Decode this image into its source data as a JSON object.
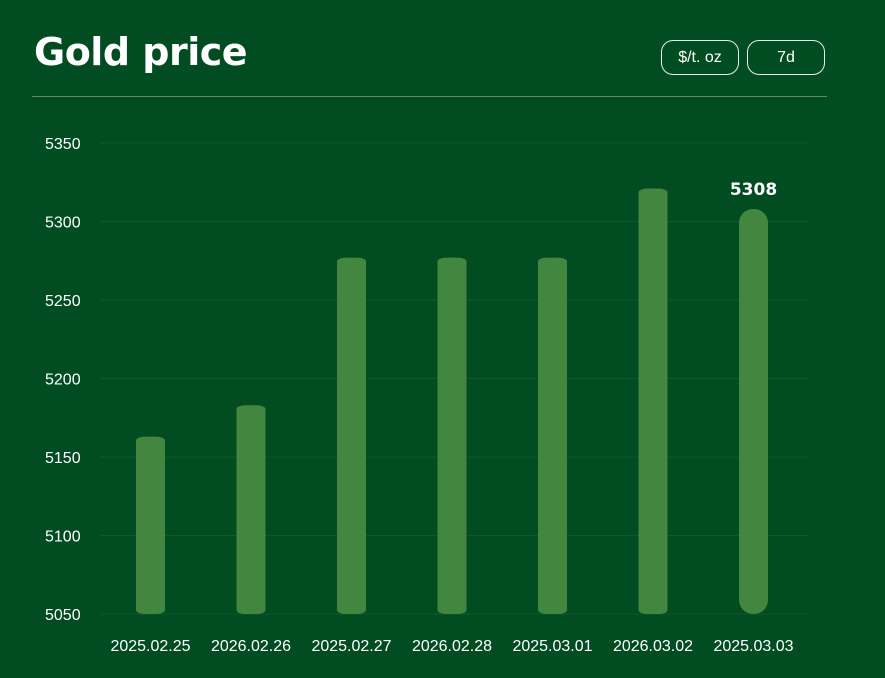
{
  "header": {
    "title": "Gold price",
    "unit_label": "$/t. oz",
    "range_label": "7d"
  },
  "colors": {
    "background": "#024c22",
    "bar": "#43863f",
    "text": "#ffffff",
    "grid": "#0d5a2b"
  },
  "chart_data": {
    "type": "bar",
    "categories": [
      "2025.02.25",
      "2026.02.26",
      "2025.02.27",
      "2026.02.28",
      "2025.03.01",
      "2026.03.02",
      "2025.03.03"
    ],
    "values": [
      5163,
      5183,
      5277,
      5277,
      5277,
      5321,
      5308
    ],
    "ylim": [
      5050,
      5350
    ],
    "yticks": [
      5050,
      5100,
      5150,
      5200,
      5250,
      5300,
      5350
    ],
    "data_labels": [
      null,
      null,
      null,
      null,
      null,
      null,
      "5308"
    ],
    "grid": true,
    "title": "",
    "xlabel": "",
    "ylabel": ""
  }
}
